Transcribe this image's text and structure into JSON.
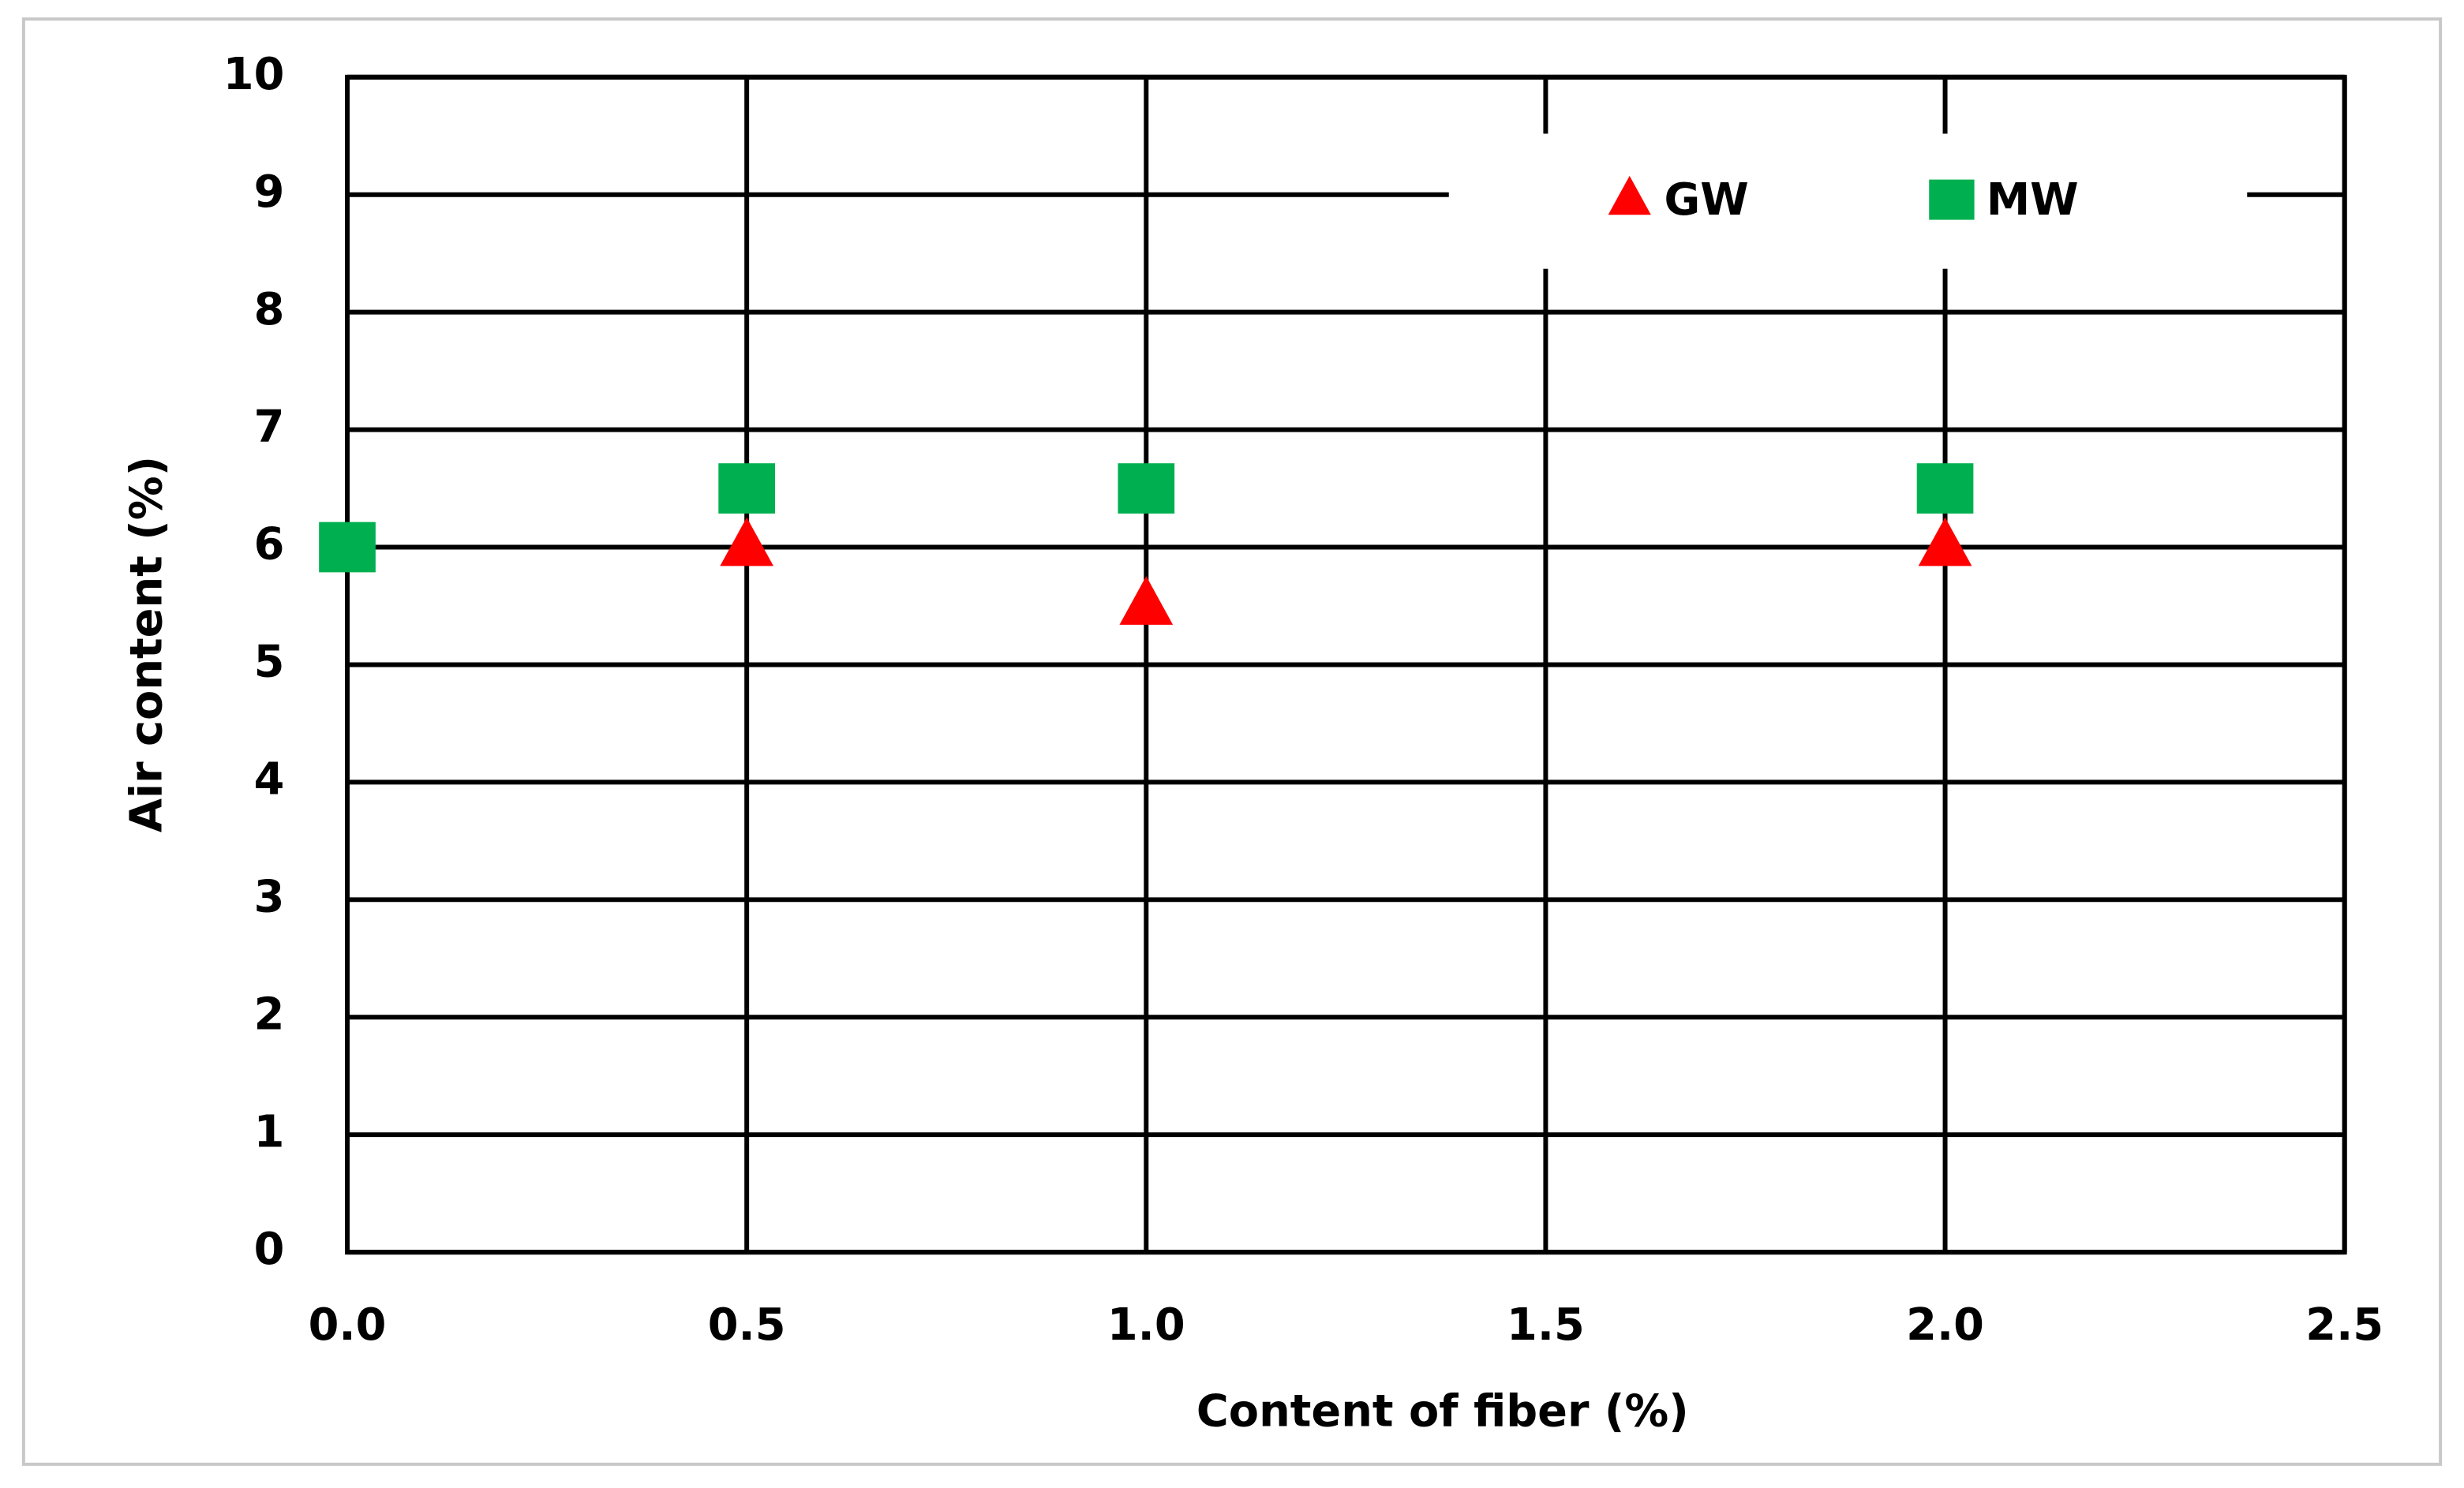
{
  "chart_data": {
    "type": "scatter",
    "xlabel": "Content of fiber (%)",
    "ylabel": "Air content (%)",
    "xlim": [
      0,
      2.5
    ],
    "xticks": [
      {
        "value": 0,
        "label": "0.0"
      },
      0.5,
      {
        "value": 1,
        "label": "1.0"
      },
      1.5,
      {
        "value": 2,
        "label": "2.0"
      },
      2.5
    ],
    "ylim": [
      0,
      10
    ],
    "yticks": [
      0,
      1,
      2,
      3,
      4,
      5,
      6,
      7,
      8,
      9,
      10
    ],
    "grid": true,
    "legend": "upper right",
    "series": [
      {
        "name": "GW",
        "color": "#ff0000",
        "marker": "triangle",
        "x": [
          0.5,
          1.0,
          2.0
        ],
        "values": [
          6.0,
          5.5,
          6.0
        ]
      },
      {
        "name": "MW",
        "color": "#00b050",
        "marker": "square",
        "x": [
          0,
          0.5,
          1.0,
          2.0
        ],
        "values": [
          6.0,
          6.5,
          6.5,
          6.5
        ]
      }
    ]
  }
}
